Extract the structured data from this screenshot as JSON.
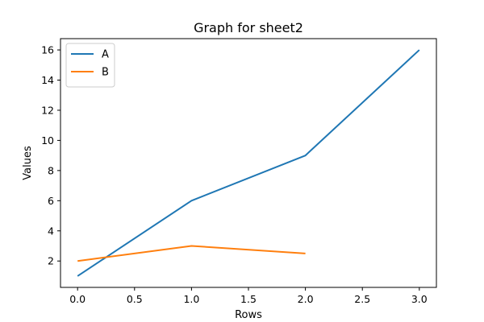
{
  "chart_data": {
    "type": "line",
    "title": "Graph for sheet2",
    "xlabel": "Rows",
    "ylabel": "Values",
    "xlim": [
      -0.15,
      3.15
    ],
    "ylim": [
      0.25,
      16.75
    ],
    "xticks": [
      0.0,
      0.5,
      1.0,
      1.5,
      2.0,
      2.5,
      3.0
    ],
    "xtick_labels": [
      "0.0",
      "0.5",
      "1.0",
      "1.5",
      "2.0",
      "2.5",
      "3.0"
    ],
    "yticks": [
      2,
      4,
      6,
      8,
      10,
      12,
      14,
      16
    ],
    "ytick_labels": [
      "2",
      "4",
      "6",
      "8",
      "10",
      "12",
      "14",
      "16"
    ],
    "grid": false,
    "legend_position": "top-left",
    "series": [
      {
        "name": "A",
        "color": "#1f77b4",
        "x": [
          0,
          1,
          2,
          3
        ],
        "y": [
          1,
          6,
          9,
          16
        ]
      },
      {
        "name": "B",
        "color": "#ff7f0e",
        "x": [
          0,
          1,
          2
        ],
        "y": [
          2,
          3,
          2.5
        ]
      }
    ]
  }
}
